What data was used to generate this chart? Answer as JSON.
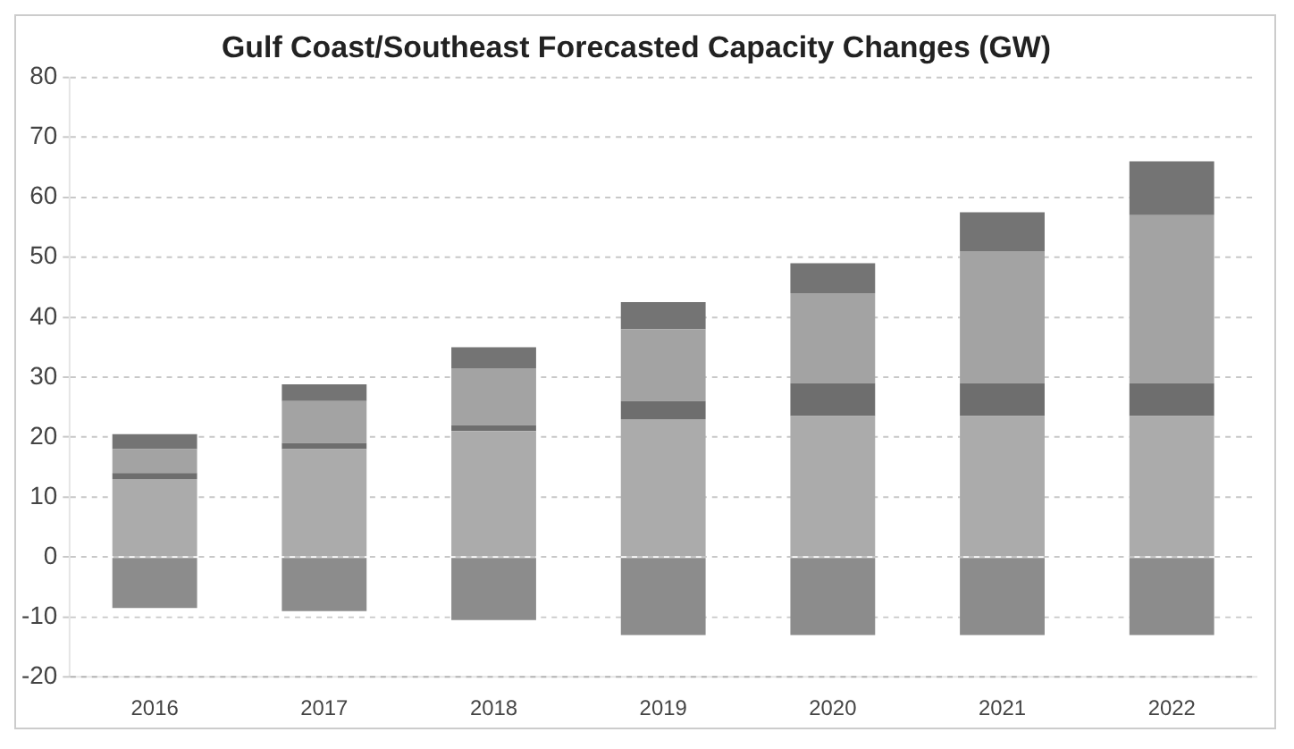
{
  "chart_data": {
    "type": "bar",
    "title": "Gulf Coast/Southeast Forecasted Capacity Changes (GW)",
    "categories": [
      "2016",
      "2017",
      "2018",
      "2019",
      "2020",
      "2021",
      "2022"
    ],
    "stacked": true,
    "series": [
      {
        "color": "#8c8c8c",
        "values": [
          -8.5,
          -9,
          -10.5,
          -13,
          -13,
          -13,
          -13
        ]
      },
      {
        "color": "#ababab",
        "values": [
          13,
          18,
          21,
          23,
          23.5,
          23.5,
          23.5
        ]
      },
      {
        "color": "#6e6e6e",
        "values": [
          1,
          1,
          1,
          3,
          5.5,
          5.5,
          5.5
        ]
      },
      {
        "color": "#a3a3a3",
        "values": [
          4,
          7,
          9.5,
          12,
          15,
          22,
          28
        ]
      },
      {
        "color": "#747474",
        "values": [
          2.5,
          2.8,
          3.5,
          4.5,
          5,
          6.5,
          9
        ]
      }
    ],
    "ylim": [
      -20,
      80
    ],
    "yticks": [
      -20,
      -10,
      0,
      10,
      20,
      30,
      40,
      50,
      60,
      70,
      80
    ],
    "grid": "y"
  }
}
